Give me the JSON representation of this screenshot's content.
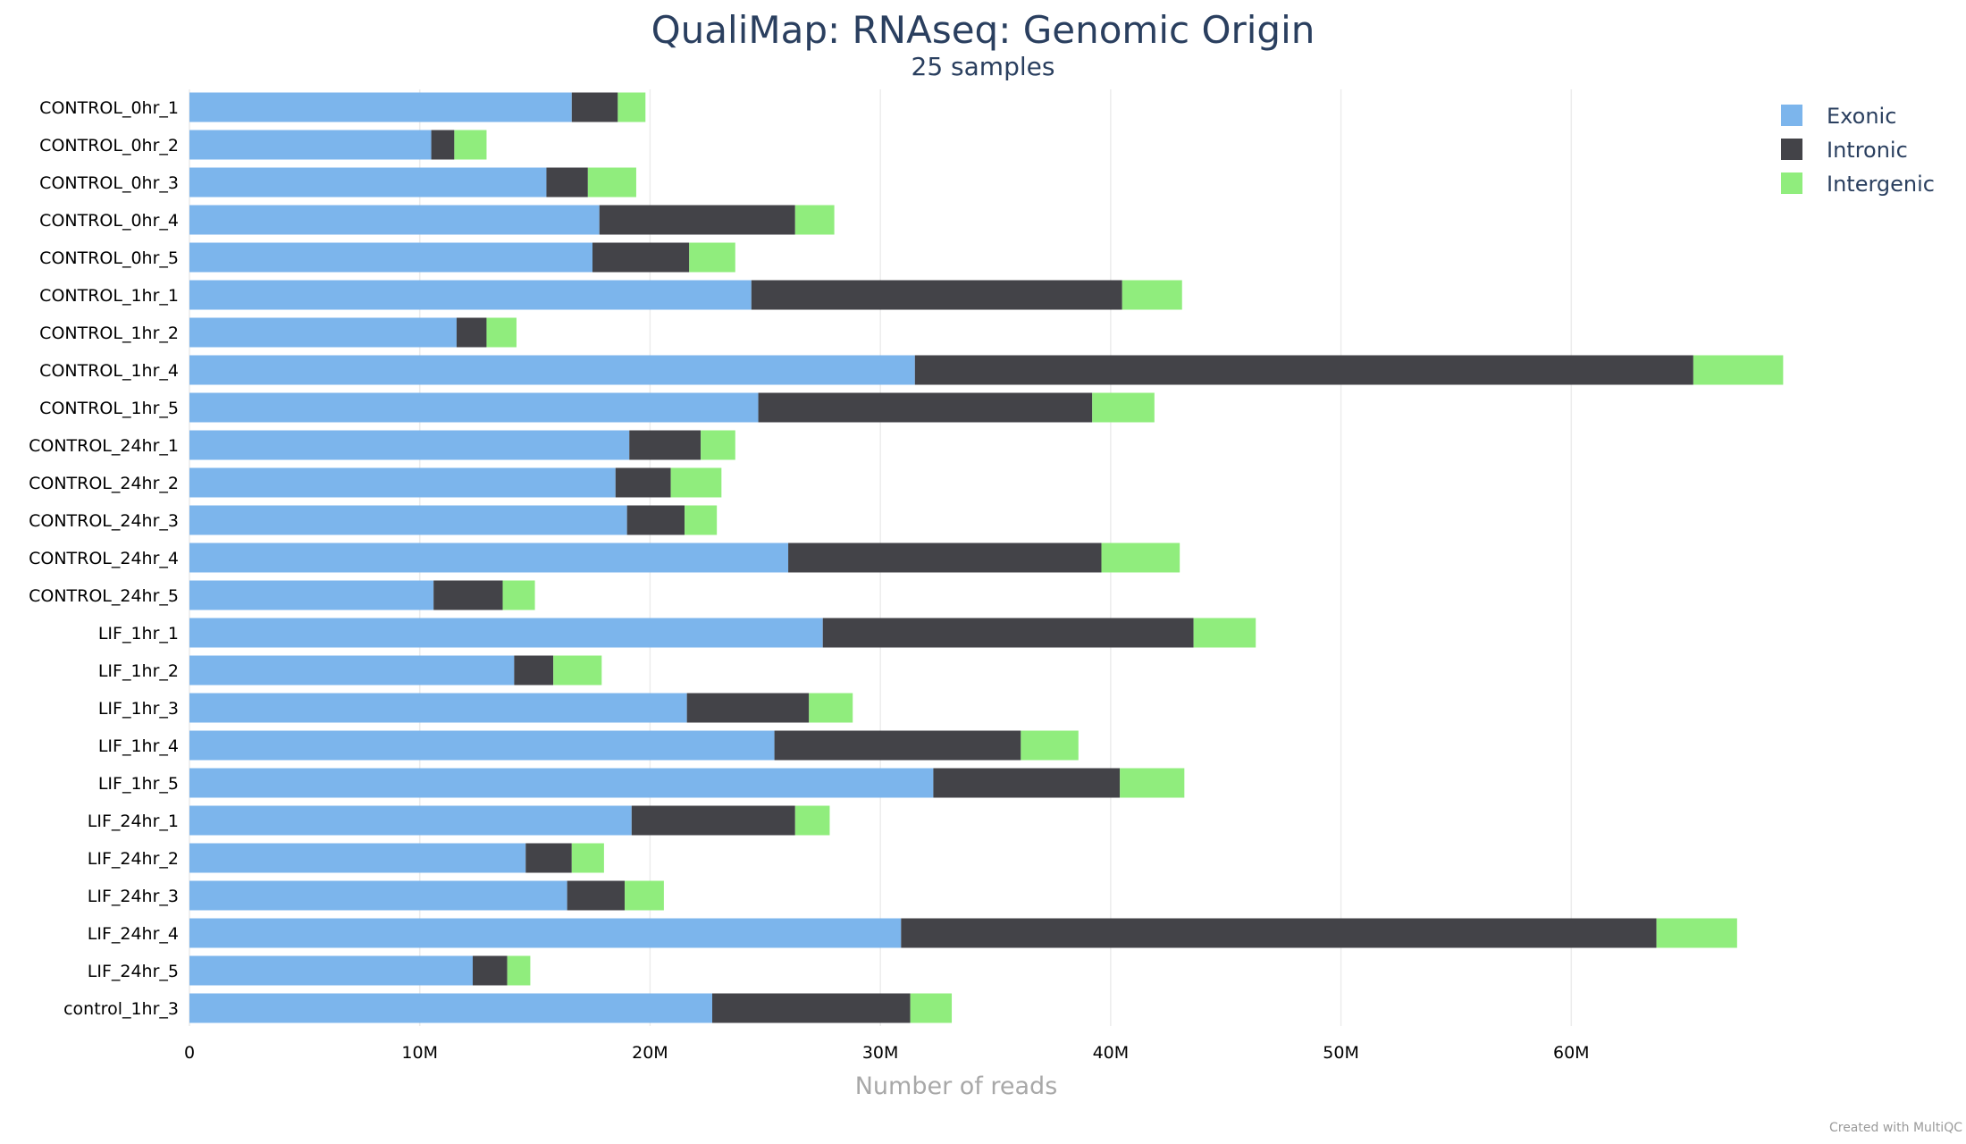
{
  "chart_data": {
    "type": "bar",
    "orientation": "horizontal",
    "stacked": true,
    "title": "QualiMap: RNAseq: Genomic Origin",
    "subtitle": "25 samples",
    "xlabel": "Number of reads",
    "ylabel": "",
    "xlim": [
      0,
      70000000
    ],
    "x_ticks": [
      {
        "value": 0,
        "label": "0"
      },
      {
        "value": 10000000,
        "label": "10M"
      },
      {
        "value": 20000000,
        "label": "20M"
      },
      {
        "value": 30000000,
        "label": "30M"
      },
      {
        "value": 40000000,
        "label": "40M"
      },
      {
        "value": 50000000,
        "label": "50M"
      },
      {
        "value": 60000000,
        "label": "60M"
      }
    ],
    "grid": true,
    "legend_position": "top-right",
    "categories": [
      "CONTROL_0hr_1",
      "CONTROL_0hr_2",
      "CONTROL_0hr_3",
      "CONTROL_0hr_4",
      "CONTROL_0hr_5",
      "CONTROL_1hr_1",
      "CONTROL_1hr_2",
      "CONTROL_1hr_4",
      "CONTROL_1hr_5",
      "CONTROL_24hr_1",
      "CONTROL_24hr_2",
      "CONTROL_24hr_3",
      "CONTROL_24hr_4",
      "CONTROL_24hr_5",
      "LIF_1hr_1",
      "LIF_1hr_2",
      "LIF_1hr_3",
      "LIF_1hr_4",
      "LIF_1hr_5",
      "LIF_24hr_1",
      "LIF_24hr_2",
      "LIF_24hr_3",
      "LIF_24hr_4",
      "LIF_24hr_5",
      "control_1hr_3"
    ],
    "series": [
      {
        "name": "Exonic",
        "color": "#7cb5ec",
        "values": [
          16600000,
          10500000,
          15500000,
          17800000,
          17500000,
          24400000,
          11600000,
          31500000,
          24700000,
          19100000,
          18500000,
          19000000,
          26000000,
          10600000,
          27500000,
          14100000,
          21600000,
          25400000,
          32300000,
          19200000,
          14600000,
          16400000,
          30900000,
          12300000,
          22700000
        ]
      },
      {
        "name": "Intronic",
        "color": "#434348",
        "values": [
          2000000,
          1000000,
          1800000,
          8500000,
          4200000,
          16100000,
          1300000,
          33800000,
          14500000,
          3100000,
          2400000,
          2500000,
          13600000,
          3000000,
          16100000,
          1700000,
          5300000,
          10700000,
          8100000,
          7100000,
          2000000,
          2500000,
          32800000,
          1500000,
          8600000
        ]
      },
      {
        "name": "Intergenic",
        "color": "#90ed7d",
        "values": [
          1200000,
          1400000,
          2100000,
          1700000,
          2000000,
          2600000,
          1300000,
          3900000,
          2700000,
          1500000,
          2200000,
          1400000,
          3400000,
          1400000,
          2700000,
          2100000,
          1900000,
          2500000,
          2800000,
          1500000,
          1400000,
          1700000,
          3500000,
          1000000,
          1800000
        ]
      }
    ],
    "credit": "Created with MultiQC"
  }
}
